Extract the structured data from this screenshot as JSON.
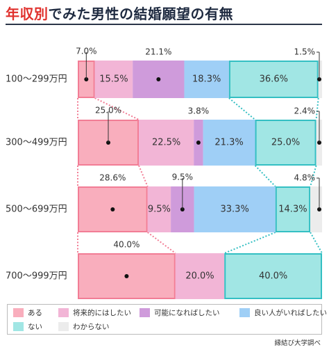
{
  "title": {
    "accent": "年収別",
    "rest": "でみた男性の結婚願望の有無"
  },
  "source": "縁結び大学調べ",
  "chart_data": {
    "type": "bar",
    "stacked": true,
    "orientation": "horizontal",
    "title": "年収別でみた男性の結婚願望の有無",
    "unit": "%",
    "categories": [
      "100〜299万円",
      "300〜499万円",
      "500〜699万円",
      "700〜999万円"
    ],
    "series": [
      {
        "name": "ある",
        "color": "#f9aebd",
        "values": [
          7.0,
          25.0,
          28.6,
          40.0
        ]
      },
      {
        "name": "将来的にはしたい",
        "color": "#f2b5d6",
        "values": [
          15.5,
          22.5,
          9.5,
          20.0
        ]
      },
      {
        "name": "可能になればしたい",
        "color": "#cf9bdb",
        "values": [
          21.1,
          3.8,
          9.5,
          0
        ]
      },
      {
        "name": "良い人がいればしたい",
        "color": "#9fcff6",
        "values": [
          18.3,
          21.3,
          33.3,
          0
        ]
      },
      {
        "name": "ない",
        "color": "#a1e6e4",
        "values": [
          36.6,
          25.0,
          14.3,
          40.0
        ]
      },
      {
        "name": "わからない",
        "color": "#ececec",
        "values": [
          1.5,
          2.4,
          4.8,
          0
        ]
      }
    ],
    "labels": [
      [
        "7.0%",
        "15.5%",
        "21.1%",
        "18.3%",
        "36.6%",
        "1.5%"
      ],
      [
        "25.0%",
        "22.5%",
        "3.8%",
        "21.3%",
        "25.0%",
        "2.4%"
      ],
      [
        "28.6%",
        "9.5%",
        "9.5%",
        "33.3%",
        "14.3%",
        "4.8%"
      ],
      [
        "40.0%",
        "20.0%",
        "",
        "",
        "40.0%",
        ""
      ]
    ],
    "callouts": {
      "first": [
        "a",
        "a",
        "n",
        "n"
      ],
      "ai": [
        "n",
        "n",
        "a",
        "n"
      ],
      "wakaranai": [
        "a",
        "a",
        "a",
        "n"
      ]
    },
    "xlim": [
      0,
      100
    ]
  }
}
